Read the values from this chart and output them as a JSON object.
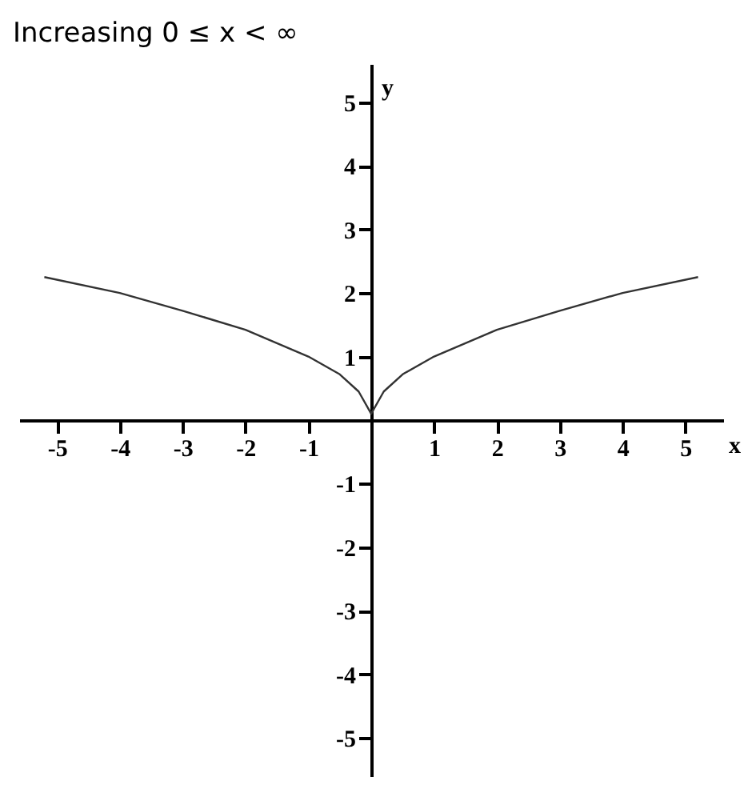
{
  "chart_data": {
    "type": "line",
    "title": "Increasing 0 ≤ x < ∞",
    "xlabel": "x",
    "ylabel": "y",
    "x": [
      -5.2,
      -4,
      -3,
      -2,
      -1,
      -0.5,
      -0.2,
      0,
      0.2,
      0.5,
      1,
      2,
      3,
      4,
      5.2
    ],
    "series": [
      {
        "color": "#333333",
        "values": [
          2.25,
          2,
          1.72,
          1.42,
          1,
          0.72,
          0.45,
          0.1,
          0.45,
          0.72,
          1,
          1.42,
          1.72,
          2,
          2.25
        ]
      }
    ],
    "xlim": [
      -5.6,
      5.6
    ],
    "ylim": [
      -5.6,
      5.6
    ],
    "xticks": [
      -5,
      -4,
      -3,
      -2,
      -1,
      1,
      2,
      3,
      4,
      5
    ],
    "yticks": [
      -5,
      -4,
      -3,
      -2,
      -1,
      1,
      2,
      3,
      4,
      5
    ]
  }
}
